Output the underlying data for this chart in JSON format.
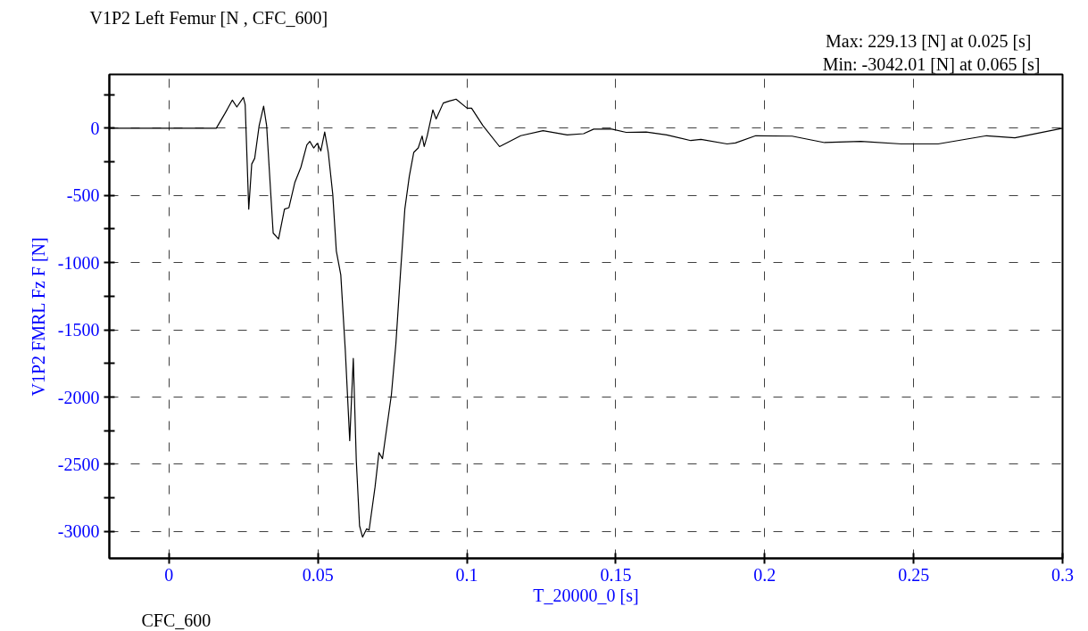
{
  "chart_data": {
    "type": "line",
    "title": "V1P2 Left Femur [N , CFC_600]",
    "xlabel": "T_20000_0 [s]",
    "ylabel": "V1P2 FMRL Fz F [N]",
    "annotations": [
      "Max:    229.13 [N] at 0.025 [s]",
      "Min:  -3042.01 [N] at 0.065 [s]",
      "CFC_600"
    ],
    "xlim": [
      -0.02,
      0.3
    ],
    "ylim": [
      -3200,
      400
    ],
    "xticks": [
      0,
      0.05,
      0.1,
      0.15,
      0.2,
      0.25,
      0.3
    ],
    "yticks": [
      {
        "value": 250,
        "label": null
      },
      0,
      {
        "value": -250,
        "label": null
      },
      -500,
      {
        "value": -750,
        "label": null
      },
      -1000,
      {
        "value": -1250,
        "label": null
      },
      -1500,
      {
        "value": -1750,
        "label": null
      },
      -2000,
      {
        "value": -2250,
        "label": null
      },
      -2500,
      {
        "value": -2750,
        "label": null
      },
      -3000
    ],
    "grid": true,
    "marker": "none",
    "line_style": "solid",
    "series": [
      {
        "color": "#000000",
        "x": [
          -0.02,
          0.0,
          0.0159,
          0.0188,
          0.0213,
          0.0228,
          0.025,
          0.0256,
          0.0268,
          0.0278,
          0.0288,
          0.0303,
          0.0318,
          0.0328,
          0.035,
          0.0368,
          0.0388,
          0.0403,
          0.0423,
          0.0443,
          0.0463,
          0.0473,
          0.0486,
          0.0498,
          0.051,
          0.0523,
          0.0535,
          0.055,
          0.0562,
          0.0577,
          0.0592,
          0.0607,
          0.0619,
          0.0629,
          0.064,
          0.065,
          0.0664,
          0.0672,
          0.0692,
          0.0705,
          0.0717,
          0.0747,
          0.0762,
          0.0777,
          0.0792,
          0.0807,
          0.0822,
          0.0837,
          0.085,
          0.0857,
          0.0867,
          0.0886,
          0.0897,
          0.0921,
          0.0941,
          0.0964,
          0.1001,
          0.1016,
          0.1054,
          0.111,
          0.1181,
          0.1256,
          0.1337,
          0.1392,
          0.1426,
          0.1487,
          0.1535,
          0.1602,
          0.1671,
          0.1752,
          0.1786,
          0.1874,
          0.1902,
          0.197,
          0.2092,
          0.2201,
          0.2323,
          0.2459,
          0.2582,
          0.2745,
          0.284,
          0.2948,
          0.3
        ],
        "values": [
          0,
          0,
          0,
          109,
          209,
          158,
          229,
          176,
          -602,
          -267,
          -224,
          20,
          164,
          20,
          -780,
          -824,
          -602,
          -591,
          -402,
          -291,
          -124,
          -98,
          -147,
          -113,
          -169,
          -29,
          -180,
          -491,
          -913,
          -1091,
          -1647,
          -2324,
          -1713,
          -2469,
          -2958,
          -3042,
          -2980,
          -2991,
          -2669,
          -2413,
          -2458,
          -1980,
          -1602,
          -1091,
          -602,
          -358,
          -180,
          -147,
          -58,
          -136,
          -58,
          136,
          69,
          187,
          202,
          216,
          149,
          149,
          20,
          -137,
          -56,
          -19,
          -50,
          -41,
          -7,
          -7,
          -31,
          -29,
          -50,
          -92,
          -83,
          -117,
          -110,
          -56,
          -59,
          -107,
          -98,
          -117,
          -117,
          -56,
          -71,
          -23,
          0
        ]
      }
    ]
  }
}
